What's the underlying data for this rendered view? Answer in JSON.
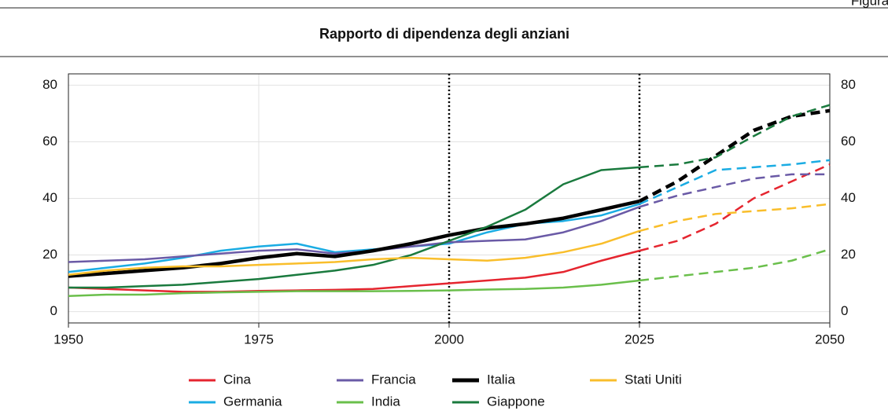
{
  "figure_label": "Figura",
  "chart_data": {
    "type": "line",
    "title": "Rapporto di dipendenza degli anziani",
    "x": [
      1950,
      1955,
      1960,
      1965,
      1970,
      1975,
      1980,
      1985,
      1990,
      1995,
      2000,
      2005,
      2010,
      2015,
      2020,
      2025,
      2030,
      2035,
      2040,
      2045,
      2050
    ],
    "xlim": [
      1950,
      2050
    ],
    "xticks": [
      1950,
      1975,
      2000,
      2025,
      2050
    ],
    "ylim": [
      -4,
      84
    ],
    "yticks": [
      0,
      20,
      40,
      60,
      80
    ],
    "right_axis": true,
    "grid": true,
    "vlines": [
      2000,
      2025
    ],
    "projection_from": 2025,
    "series": [
      {
        "name": "Cina",
        "color": "#e5252f",
        "width": 2.5,
        "values": [
          8.5,
          8,
          7.5,
          7,
          7,
          7.3,
          7.5,
          7.7,
          8,
          9,
          10,
          11,
          12,
          14,
          18,
          21.5,
          25,
          31,
          40,
          46,
          52
        ]
      },
      {
        "name": "Germania",
        "color": "#1aace3",
        "width": 2.5,
        "values": [
          14,
          15.5,
          17,
          19,
          21.5,
          23,
          24,
          21,
          22,
          23,
          24,
          28,
          31,
          32,
          34,
          38,
          44,
          50,
          51,
          52,
          53.5
        ]
      },
      {
        "name": "Francia",
        "color": "#6a5aa6",
        "width": 2.5,
        "values": [
          17.5,
          18,
          18.5,
          19.5,
          20.5,
          21.5,
          22,
          20.5,
          21.5,
          23,
          24.5,
          25,
          25.5,
          28,
          32,
          37,
          41,
          44,
          47,
          48.5,
          48.5
        ]
      },
      {
        "name": "India",
        "color": "#6abf4b",
        "width": 2.5,
        "values": [
          5.5,
          6,
          6,
          6.5,
          6.8,
          7,
          7.2,
          7.2,
          7.2,
          7.3,
          7.5,
          7.8,
          8,
          8.5,
          9.5,
          11,
          12.5,
          14,
          15.5,
          18,
          22
        ]
      },
      {
        "name": "Italia",
        "color": "#000000",
        "width": 4.5,
        "values": [
          12.5,
          13.5,
          14.5,
          15.5,
          17,
          19,
          20.5,
          19.5,
          21.5,
          24,
          27,
          29.5,
          31,
          33,
          36,
          39,
          46,
          55,
          64,
          69,
          71
        ]
      },
      {
        "name": "Giappone",
        "color": "#1a7a3e",
        "width": 2.5,
        "values": [
          8.5,
          8.5,
          9,
          9.5,
          10.5,
          11.5,
          13,
          14.5,
          16.5,
          20,
          25,
          30,
          36,
          45,
          50,
          51,
          52,
          54.5,
          62,
          69,
          73
        ]
      },
      {
        "name": "Stati Uniti",
        "color": "#f9be2b",
        "width": 2.5,
        "values": [
          13,
          14.5,
          15.5,
          16,
          16,
          16.5,
          17,
          17.5,
          18.5,
          19,
          18.5,
          18,
          19,
          21,
          24,
          28.5,
          32,
          34.5,
          35.5,
          36.5,
          38
        ]
      }
    ]
  }
}
